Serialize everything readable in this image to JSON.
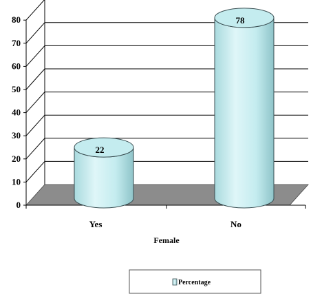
{
  "chart_data": {
    "type": "bar",
    "style": "3d-cylinder",
    "categories": [
      "Yes",
      "No"
    ],
    "series": [
      {
        "name": "Percentage",
        "values": [
          22,
          78
        ]
      }
    ],
    "data_labels": [
      "22",
      "78"
    ],
    "title": "",
    "xlabel": "Female",
    "ylabel": "",
    "ylim": [
      0,
      80
    ],
    "yticks": [
      0,
      10,
      20,
      30,
      40,
      50,
      60,
      70,
      80
    ],
    "grid": true,
    "legend_position": "bottom-right",
    "colors": {
      "bar_fill": "#c4ecef",
      "bar_stroke": "#3a4e52",
      "floor": "#8c8c8c",
      "grid": "#000000"
    }
  }
}
